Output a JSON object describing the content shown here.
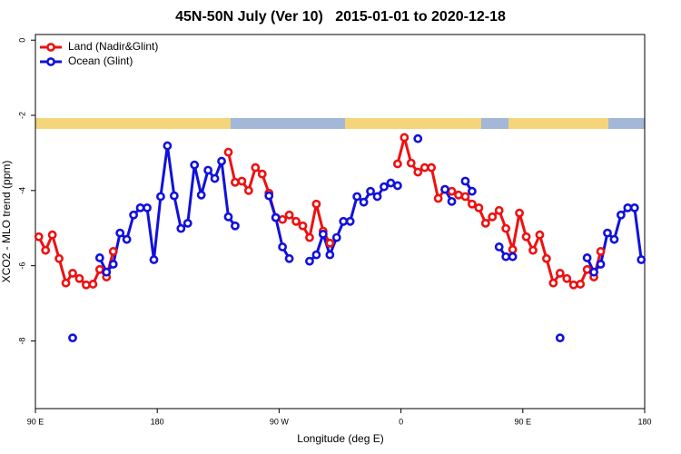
{
  "chart_data": {
    "type": "line",
    "title": "45N-50N July (Ver 10)   2015-01-01 to 2020-12-18",
    "x_label": "Longitude (deg E)",
    "y_label": "XCO2 - MLO trend (ppm)",
    "xlim": [
      90,
      540
    ],
    "ylim": [
      -9.8,
      0.15
    ],
    "xticks": [
      {
        "value": 90,
        "label": "90 E"
      },
      180,
      {
        "value": 270,
        "label": "90 W"
      },
      {
        "value": 360,
        "label": "0"
      },
      {
        "value": 450,
        "label": "90 E"
      },
      {
        "value": 540,
        "label": "180"
      }
    ],
    "yticks": [
      0,
      -2,
      -4,
      -6,
      -8
    ],
    "legend": "top-left",
    "x": [
      92.5,
      97.5,
      102.5,
      107.5,
      112.5,
      117.5,
      122.5,
      127.5,
      132.5,
      137.5,
      142.5,
      147.5,
      152.5,
      157.5,
      162.5,
      167.5,
      172.5,
      177.5,
      182.5,
      187.5,
      192.5,
      197.5,
      202.5,
      207.5,
      212.5,
      217.5,
      222.5,
      227.5,
      232.5,
      237.5,
      242.5,
      247.5,
      252.5,
      257.5,
      262.5,
      267.5,
      272.5,
      277.5,
      282.5,
      287.5,
      292.5,
      297.5,
      302.5,
      307.5,
      312.5,
      317.5,
      322.5,
      327.5,
      332.5,
      337.5,
      342.5,
      347.5,
      352.5,
      357.5,
      362.5,
      367.5,
      372.5,
      377.5,
      382.5,
      387.5,
      392.5,
      397.5,
      402.5,
      407.5,
      412.5,
      417.5,
      422.5,
      427.5,
      432.5,
      437.5,
      442.5,
      447.5,
      452.5,
      457.5,
      462.5,
      467.5,
      472.5,
      477.5,
      482.5,
      487.5,
      492.5,
      497.5,
      502.5,
      507.5,
      512.5,
      517.5,
      522.5,
      527.5,
      532.5,
      537.5
    ],
    "series": [
      {
        "name": "Land (Nadir&Glint)",
        "color": "#ee1111",
        "values": [
          -5.23,
          -5.59,
          -5.18,
          -5.81,
          -6.46,
          -6.2,
          -6.34,
          -6.51,
          -6.49,
          -6.1,
          -6.3,
          -5.62,
          null,
          null,
          null,
          null,
          null,
          null,
          null,
          null,
          null,
          null,
          null,
          null,
          null,
          null,
          null,
          null,
          -2.98,
          -3.78,
          -3.75,
          -4.0,
          -3.39,
          -3.56,
          -4.07,
          -4.72,
          -4.77,
          -4.65,
          -4.82,
          -4.94,
          -5.25,
          -4.36,
          -5.08,
          -5.4,
          null,
          null,
          null,
          null,
          null,
          null,
          null,
          null,
          null,
          -3.29,
          -2.59,
          -3.27,
          -3.51,
          -3.39,
          -3.39,
          -4.21,
          -3.97,
          -4.02,
          -4.12,
          -4.16,
          -4.36,
          -4.46,
          -4.87,
          -4.7,
          -4.53,
          -5.01,
          -5.57,
          -4.6,
          -5.23,
          -5.59,
          -5.18,
          -5.81,
          -6.46,
          -6.2,
          -6.34,
          -6.51,
          -6.49,
          -6.1,
          -6.3,
          -5.62,
          null,
          null,
          null,
          null,
          null,
          null
        ]
      },
      {
        "name": "Ocean (Glint)",
        "color": "#1111dd",
        "values": [
          null,
          null,
          null,
          null,
          null,
          -7.92,
          null,
          null,
          null,
          -5.79,
          -6.17,
          -5.96,
          -5.13,
          -5.3,
          -4.65,
          -4.46,
          -4.46,
          -5.84,
          -4.16,
          -2.81,
          -4.14,
          -5.01,
          -4.87,
          -3.32,
          -4.12,
          -3.46,
          -3.68,
          -3.22,
          -4.7,
          -4.94,
          null,
          null,
          null,
          null,
          -4.14,
          -4.72,
          -5.5,
          -5.81,
          null,
          null,
          -5.88,
          -5.71,
          -5.16,
          -5.71,
          -5.25,
          -4.82,
          -4.82,
          -4.16,
          -4.31,
          -4.02,
          -4.16,
          -3.9,
          -3.8,
          -3.87,
          null,
          null,
          -2.62,
          null,
          null,
          null,
          -3.97,
          -4.29,
          null,
          -3.75,
          -4.02,
          null,
          null,
          null,
          -5.5,
          -5.76,
          -5.76,
          null,
          null,
          null,
          null,
          null,
          null,
          -7.92,
          null,
          null,
          null,
          -5.79,
          -6.17,
          -5.96,
          -5.13,
          -5.3,
          -4.65,
          -4.46,
          -4.46,
          -5.84
        ]
      }
    ]
  }
}
